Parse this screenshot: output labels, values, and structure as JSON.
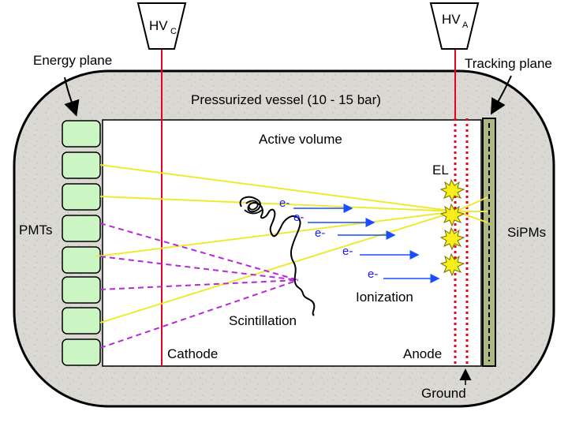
{
  "labels": {
    "hv_cathode_main": "HV",
    "hv_cathode_sub": "C",
    "hv_anode_main": "HV",
    "hv_anode_sub": "A",
    "energy_plane": "Energy plane",
    "tracking_plane": "Tracking plane",
    "vessel": "Pressurized vessel (10 - 15 bar)",
    "active_volume": "Active volume",
    "el": "EL",
    "pmts": "PMTs",
    "sipms": "SiPMs",
    "scintillation": "Scintillation",
    "ionization": "Ionization",
    "cathode": "Cathode",
    "anode": "Anode",
    "ground": "Ground",
    "electron": "e-"
  },
  "colors": {
    "vessel_fill": "#d9d7d2",
    "pmt_fill": "#ccf5c4",
    "hv_line": "#e8001c",
    "light_ray": "#eeea33",
    "scint_ray": "#b62ad6",
    "electron": "#1a1aff",
    "el_flash": "#f5ef1c",
    "sipm_strip": "#aeb87f"
  },
  "pmt_count": 8,
  "electron_count": 5,
  "el_flash_count": 4
}
